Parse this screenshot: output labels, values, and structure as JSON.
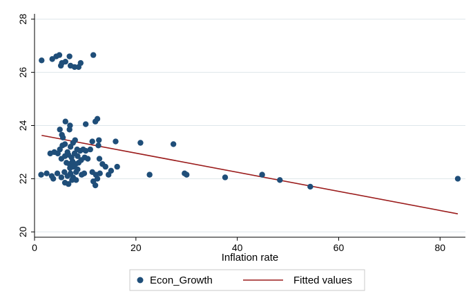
{
  "chart_data": {
    "type": "scatter",
    "xlabel": "Inflation rate",
    "ylabel": "",
    "xlim": [
      0,
      85
    ],
    "ylim": [
      19.8,
      28.2
    ],
    "xticks": [
      0,
      20,
      40,
      60,
      80
    ],
    "yticks": [
      20,
      22,
      24,
      26,
      28
    ],
    "grid": true,
    "legend_position": "bottom",
    "colors": {
      "scatter": "#1f4e79",
      "fitted": "#9b1c1c",
      "grid": "#dde6ea",
      "plot_bg": "#ffffff",
      "outer_bg": "#ffffff",
      "legend_bg": "#ffffff"
    },
    "series": [
      {
        "name": "Econ_Growth",
        "kind": "scatter",
        "points": [
          [
            1.4,
            26.45
          ],
          [
            3.5,
            26.5
          ],
          [
            4.3,
            26.6
          ],
          [
            4.9,
            26.65
          ],
          [
            5.4,
            26.35
          ],
          [
            5.2,
            26.25
          ],
          [
            6.1,
            26.4
          ],
          [
            6.9,
            26.6
          ],
          [
            7.1,
            26.25
          ],
          [
            7.9,
            26.2
          ],
          [
            8.7,
            26.2
          ],
          [
            9.1,
            26.35
          ],
          [
            11.6,
            26.65
          ],
          [
            5.0,
            23.85
          ],
          [
            5.4,
            23.65
          ],
          [
            5.6,
            23.55
          ],
          [
            6.1,
            24.15
          ],
          [
            7.0,
            24.0
          ],
          [
            6.9,
            23.85
          ],
          [
            10.1,
            24.05
          ],
          [
            12.0,
            24.15
          ],
          [
            12.4,
            24.25
          ],
          [
            12.7,
            23.45
          ],
          [
            3.1,
            22.95
          ],
          [
            3.9,
            23.0
          ],
          [
            4.6,
            22.95
          ],
          [
            5.0,
            23.1
          ],
          [
            5.5,
            23.25
          ],
          [
            6.0,
            23.3
          ],
          [
            6.5,
            23.0
          ],
          [
            7.1,
            23.2
          ],
          [
            7.6,
            23.35
          ],
          [
            8.0,
            23.45
          ],
          [
            8.4,
            23.1
          ],
          [
            9.0,
            23.05
          ],
          [
            9.6,
            23.1
          ],
          [
            10.1,
            23.05
          ],
          [
            11.0,
            23.1
          ],
          [
            11.4,
            23.4
          ],
          [
            12.6,
            23.25
          ],
          [
            5.3,
            22.75
          ],
          [
            6.0,
            22.85
          ],
          [
            6.7,
            22.9
          ],
          [
            7.3,
            22.8
          ],
          [
            7.9,
            22.95
          ],
          [
            8.5,
            22.85
          ],
          [
            9.2,
            22.7
          ],
          [
            9.9,
            22.8
          ],
          [
            10.5,
            22.75
          ],
          [
            12.8,
            22.75
          ],
          [
            16.0,
            23.4
          ],
          [
            6.3,
            22.6
          ],
          [
            6.9,
            22.55
          ],
          [
            7.5,
            22.65
          ],
          [
            8.1,
            22.55
          ],
          [
            8.7,
            22.6
          ],
          [
            7.0,
            22.4
          ],
          [
            7.7,
            22.45
          ],
          [
            8.5,
            22.35
          ],
          [
            13.4,
            22.55
          ],
          [
            14.0,
            22.45
          ],
          [
            1.3,
            22.15
          ],
          [
            2.4,
            22.2
          ],
          [
            3.4,
            22.1
          ],
          [
            4.5,
            22.2
          ],
          [
            5.3,
            22.05
          ],
          [
            5.9,
            22.25
          ],
          [
            6.5,
            22.1
          ],
          [
            7.1,
            22.2
          ],
          [
            7.6,
            22.05
          ],
          [
            8.2,
            22.25
          ],
          [
            9.3,
            22.15
          ],
          [
            9.8,
            22.2
          ],
          [
            11.4,
            22.25
          ],
          [
            12.1,
            22.15
          ],
          [
            12.9,
            22.2
          ],
          [
            14.6,
            22.15
          ],
          [
            15.1,
            22.3
          ],
          [
            16.3,
            22.45
          ],
          [
            3.7,
            22.0
          ],
          [
            6.0,
            21.85
          ],
          [
            6.7,
            21.8
          ],
          [
            7.4,
            21.95
          ],
          [
            8.2,
            21.95
          ],
          [
            11.6,
            21.9
          ],
          [
            12.0,
            21.75
          ],
          [
            12.4,
            22.0
          ],
          [
            20.9,
            23.35
          ],
          [
            22.7,
            22.15
          ],
          [
            27.4,
            23.3
          ],
          [
            29.6,
            22.2
          ],
          [
            30.0,
            22.15
          ],
          [
            37.6,
            22.05
          ],
          [
            44.9,
            22.15
          ],
          [
            48.4,
            21.95
          ],
          [
            54.4,
            21.7
          ],
          [
            83.5,
            22.0
          ]
        ]
      },
      {
        "name": "Fitted values",
        "kind": "line",
        "points": [
          [
            1.4,
            23.63
          ],
          [
            83.5,
            20.68
          ]
        ]
      }
    ]
  }
}
